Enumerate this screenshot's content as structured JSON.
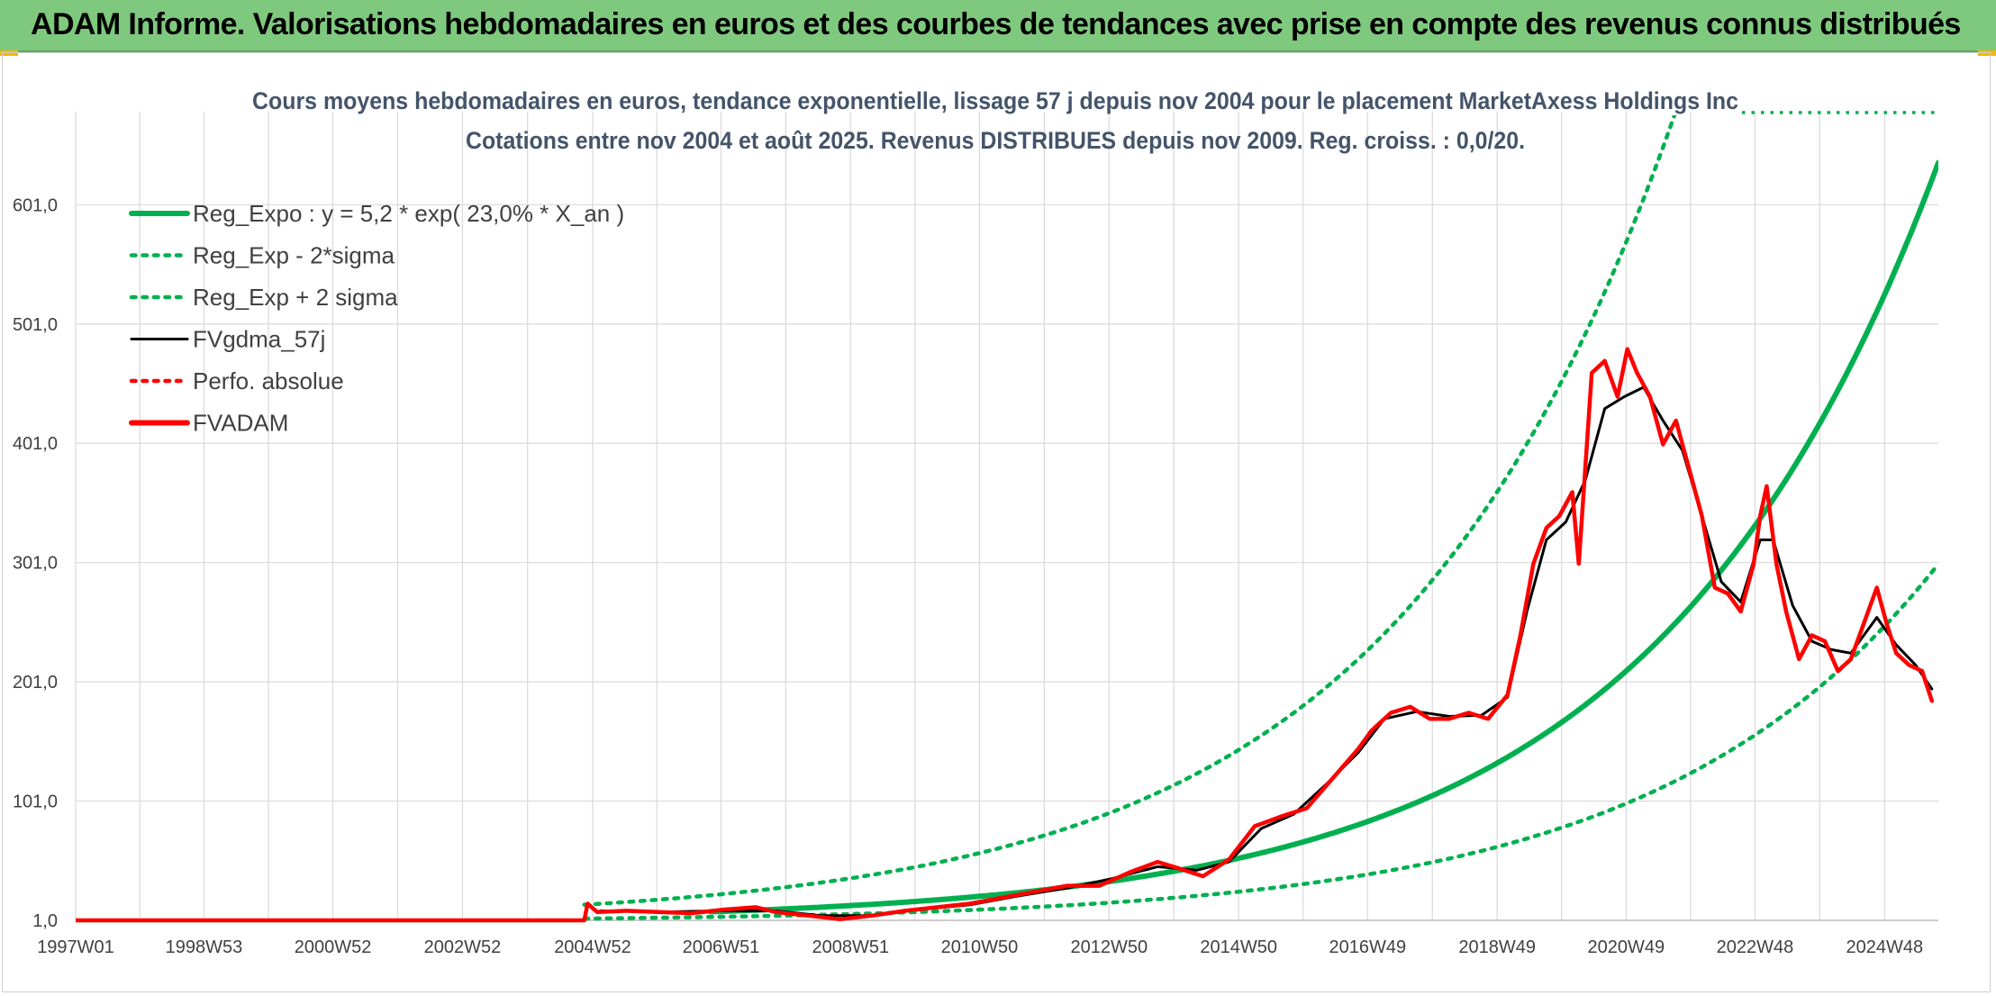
{
  "header": {
    "title": "ADAM Informe. Valorisations hebdomadaires en euros et des courbes de tendances avec prise en compte des revenus connus distribués"
  },
  "colors": {
    "header_bg": "#7fc97f",
    "reg_green": "#00b050",
    "red": "#ff0000",
    "black": "#000000",
    "grid": "#d9d9d9"
  },
  "chart_data": {
    "type": "line",
    "title": "Cours moyens hebdomadaires en euros, tendance exponentielle, lissage 57 j depuis nov 2004 pour le placement MarketAxess Holdings Inc",
    "subtitle": "Cotations entre nov 2004 et août 2025. Revenus DISTRIBUES depuis nov 2009. Reg. croiss. : 0,0/20.",
    "xlabel": "",
    "ylabel": "",
    "grid": true,
    "legend_position": "top-left",
    "x_range": [
      1997.0,
      2025.75
    ],
    "ylim": [
      1.0,
      676.0
    ],
    "y_ticks": [
      "1,0",
      "101,0",
      "201,0",
      "301,0",
      "401,0",
      "501,0",
      "601,0"
    ],
    "y_tick_values": [
      1,
      101,
      201,
      301,
      401,
      501,
      601
    ],
    "x_ticks": [
      "1997W01",
      "1998W53",
      "2000W52",
      "2002W52",
      "2004W52",
      "2006W51",
      "2008W51",
      "2010W50",
      "2012W50",
      "2014W50",
      "2016W49",
      "2018W49",
      "2020W49",
      "2022W48",
      "2024W48"
    ],
    "x_tick_values": [
      1997.0,
      1998.98,
      2000.97,
      2002.97,
      2004.98,
      2006.96,
      2008.96,
      2010.95,
      2012.95,
      2014.95,
      2016.94,
      2018.94,
      2020.93,
      2022.92,
      2024.92
    ],
    "legend": [
      {
        "name": "Reg_Expo : y = 5,2 * exp( 23,0% *  X_an )",
        "style": "solid-thick",
        "color": "#00b050"
      },
      {
        "name": "Reg_Exp - 2*sigma",
        "style": "dotted",
        "color": "#00b050"
      },
      {
        "name": "Reg_Exp + 2 sigma",
        "style": "dotted",
        "color": "#00b050"
      },
      {
        "name": "FVgdma_57j",
        "style": "solid",
        "color": "#000000"
      },
      {
        "name": "Perfo. absolue",
        "style": "dotted",
        "color": "#ff0000"
      },
      {
        "name": "FVADAM",
        "style": "solid-thick",
        "color": "#ff0000"
      }
    ],
    "series": [
      {
        "name": "FVADAM",
        "color": "#ff0000",
        "points": [
          [
            1997.0,
            1
          ],
          [
            2004.85,
            1
          ],
          [
            2004.9,
            15
          ],
          [
            2005.05,
            8
          ],
          [
            2005.5,
            9
          ],
          [
            2006.0,
            8
          ],
          [
            2006.5,
            7
          ],
          [
            2007.0,
            10
          ],
          [
            2007.5,
            12
          ],
          [
            2007.8,
            8
          ],
          [
            2008.3,
            5
          ],
          [
            2008.8,
            2
          ],
          [
            2009.3,
            5
          ],
          [
            2009.8,
            9
          ],
          [
            2010.3,
            12
          ],
          [
            2010.8,
            15
          ],
          [
            2011.3,
            20
          ],
          [
            2011.8,
            25
          ],
          [
            2012.3,
            30
          ],
          [
            2012.8,
            30
          ],
          [
            2013.3,
            42
          ],
          [
            2013.7,
            50
          ],
          [
            2014.0,
            45
          ],
          [
            2014.4,
            38
          ],
          [
            2014.8,
            52
          ],
          [
            2015.2,
            80
          ],
          [
            2015.6,
            88
          ],
          [
            2016.0,
            95
          ],
          [
            2016.4,
            120
          ],
          [
            2016.8,
            145
          ],
          [
            2017.0,
            160
          ],
          [
            2017.3,
            175
          ],
          [
            2017.6,
            180
          ],
          [
            2017.9,
            170
          ],
          [
            2018.2,
            170
          ],
          [
            2018.5,
            175
          ],
          [
            2018.8,
            170
          ],
          [
            2019.1,
            190
          ],
          [
            2019.3,
            240
          ],
          [
            2019.5,
            300
          ],
          [
            2019.7,
            330
          ],
          [
            2019.9,
            340
          ],
          [
            2020.1,
            360
          ],
          [
            2020.2,
            300
          ],
          [
            2020.4,
            460
          ],
          [
            2020.6,
            470
          ],
          [
            2020.8,
            440
          ],
          [
            2020.95,
            480
          ],
          [
            2021.1,
            460
          ],
          [
            2021.3,
            440
          ],
          [
            2021.5,
            400
          ],
          [
            2021.7,
            420
          ],
          [
            2021.9,
            380
          ],
          [
            2022.1,
            340
          ],
          [
            2022.3,
            280
          ],
          [
            2022.5,
            275
          ],
          [
            2022.7,
            260
          ],
          [
            2022.9,
            300
          ],
          [
            2023.0,
            340
          ],
          [
            2023.1,
            365
          ],
          [
            2023.25,
            300
          ],
          [
            2023.4,
            260
          ],
          [
            2023.6,
            220
          ],
          [
            2023.8,
            240
          ],
          [
            2024.0,
            235
          ],
          [
            2024.2,
            210
          ],
          [
            2024.4,
            220
          ],
          [
            2024.6,
            250
          ],
          [
            2024.8,
            280
          ],
          [
            2024.95,
            250
          ],
          [
            2025.1,
            225
          ],
          [
            2025.3,
            215
          ],
          [
            2025.5,
            210
          ],
          [
            2025.65,
            185
          ]
        ]
      },
      {
        "name": "FVgdma_57j",
        "color": "#000000",
        "points": [
          [
            2005.1,
            9
          ],
          [
            2006.0,
            8
          ],
          [
            2007.0,
            9
          ],
          [
            2007.8,
            9
          ],
          [
            2008.5,
            5
          ],
          [
            2009.3,
            5
          ],
          [
            2010.0,
            10
          ],
          [
            2010.8,
            14
          ],
          [
            2011.5,
            21
          ],
          [
            2012.3,
            28
          ],
          [
            2013.0,
            36
          ],
          [
            2013.7,
            46
          ],
          [
            2014.3,
            43
          ],
          [
            2014.8,
            50
          ],
          [
            2015.3,
            78
          ],
          [
            2015.8,
            90
          ],
          [
            2016.3,
            115
          ],
          [
            2016.8,
            142
          ],
          [
            2017.2,
            170
          ],
          [
            2017.7,
            176
          ],
          [
            2018.2,
            172
          ],
          [
            2018.7,
            173
          ],
          [
            2019.1,
            188
          ],
          [
            2019.4,
            260
          ],
          [
            2019.7,
            320
          ],
          [
            2020.0,
            335
          ],
          [
            2020.3,
            370
          ],
          [
            2020.6,
            430
          ],
          [
            2020.9,
            440
          ],
          [
            2021.2,
            448
          ],
          [
            2021.5,
            420
          ],
          [
            2021.8,
            395
          ],
          [
            2022.1,
            340
          ],
          [
            2022.4,
            285
          ],
          [
            2022.7,
            268
          ],
          [
            2023.0,
            320
          ],
          [
            2023.2,
            320
          ],
          [
            2023.5,
            265
          ],
          [
            2023.8,
            235
          ],
          [
            2024.1,
            228
          ],
          [
            2024.4,
            225
          ],
          [
            2024.8,
            255
          ],
          [
            2025.1,
            232
          ],
          [
            2025.4,
            215
          ],
          [
            2025.65,
            195
          ]
        ]
      },
      {
        "name": "Reg_Expo : y = 5,2 * exp( 23,0% *  X_an )",
        "color": "#00b050",
        "formula": {
          "a": 5.2,
          "b": 0.23,
          "x0": 2004.85
        },
        "x_range": [
          2006.8,
          2025.75
        ]
      },
      {
        "name": "Reg_Exp - 2*sigma",
        "color": "#00b050",
        "formula": {
          "a": 2.45,
          "b": 0.23,
          "x0": 2004.85
        },
        "x_range": [
          2004.85,
          2025.75
        ]
      },
      {
        "name": "Reg_Exp + 2 sigma",
        "color": "#00b050",
        "formula": {
          "a": 14.1,
          "b": 0.23,
          "x0": 2004.85
        },
        "x_range": [
          2004.85,
          2025.75
        ]
      }
    ]
  }
}
